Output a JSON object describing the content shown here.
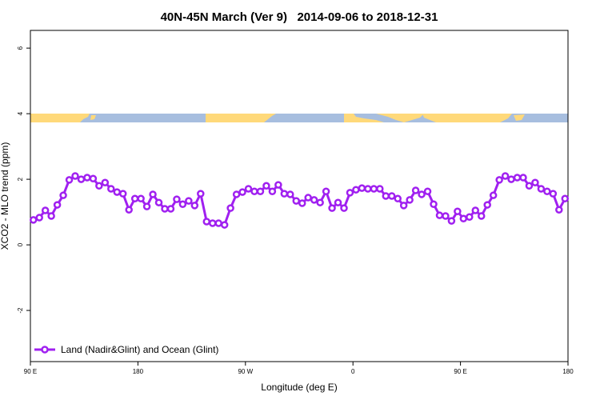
{
  "chart_data": {
    "type": "line",
    "title": "40N-45N March (Ver 9)   2014-09-06 to 2018-12-31",
    "x_label": "Longitude (deg E)",
    "y_label": "XCO2 - MLO trend (ppm)",
    "xlim": [
      90,
      540
    ],
    "ylim": [
      -3.56,
      6.54
    ],
    "xticks": [
      {
        "value": 90,
        "label": "90 E"
      },
      180,
      {
        "value": 270,
        "label": "90 W"
      },
      {
        "value": 360,
        "label": "0"
      },
      {
        "value": 450,
        "label": "90 E"
      },
      {
        "value": 540,
        "label": "180"
      }
    ],
    "yticks": [
      -2,
      0,
      2,
      4,
      6
    ],
    "legend": "bottom left",
    "x": [
      92.5,
      97.5,
      102.5,
      107.5,
      112.5,
      117.5,
      122.5,
      127.5,
      132.5,
      137.5,
      142.5,
      147.5,
      152.5,
      157.5,
      162.5,
      167.5,
      172.5,
      177.5,
      182.5,
      187.5,
      192.5,
      197.5,
      202.5,
      207.5,
      212.5,
      217.5,
      222.5,
      227.5,
      232.5,
      237.5,
      242.5,
      247.5,
      252.5,
      257.5,
      262.5,
      267.5,
      272.5,
      277.5,
      282.5,
      287.5,
      292.5,
      297.5,
      302.5,
      307.5,
      312.5,
      317.5,
      322.5,
      327.5,
      332.5,
      337.5,
      342.5,
      347.5,
      352.5,
      357.5,
      362.5,
      367.5,
      372.5,
      377.5,
      382.5,
      387.5,
      392.5,
      397.5,
      402.5,
      407.5,
      412.5,
      417.5,
      422.5,
      427.5,
      432.5,
      437.5,
      442.5,
      447.5,
      452.5,
      457.5,
      462.5,
      467.5,
      472.5,
      477.5,
      482.5,
      487.5,
      492.5,
      497.5,
      502.5,
      507.5,
      512.5,
      517.5,
      522.5,
      527.5,
      532.5,
      537.5
    ],
    "series": [
      {
        "name": "Land (Nadir&Glint) and Ocean (Glint)",
        "color": "#a020f0",
        "values": [
          0.76,
          0.83,
          1.05,
          0.88,
          1.22,
          1.51,
          1.98,
          2.1,
          2.0,
          2.05,
          2.02,
          1.8,
          1.9,
          1.71,
          1.61,
          1.56,
          1.07,
          1.41,
          1.41,
          1.17,
          1.54,
          1.29,
          1.1,
          1.1,
          1.39,
          1.24,
          1.34,
          1.2,
          1.56,
          0.71,
          0.66,
          0.66,
          0.61,
          1.12,
          1.54,
          1.61,
          1.71,
          1.63,
          1.63,
          1.8,
          1.63,
          1.83,
          1.56,
          1.54,
          1.34,
          1.27,
          1.44,
          1.37,
          1.29,
          1.63,
          1.12,
          1.29,
          1.12,
          1.59,
          1.68,
          1.73,
          1.71,
          1.71,
          1.71,
          1.49,
          1.49,
          1.41,
          1.2,
          1.37,
          1.66,
          1.54,
          1.63,
          1.24,
          0.9,
          0.88,
          0.73,
          1.02,
          0.8,
          0.85,
          1.05,
          0.88,
          1.22,
          1.51,
          1.98,
          2.1,
          2.0,
          2.05,
          2.05,
          1.8,
          1.9,
          1.71,
          1.63,
          1.56,
          1.07,
          1.41
        ]
      }
    ]
  }
}
